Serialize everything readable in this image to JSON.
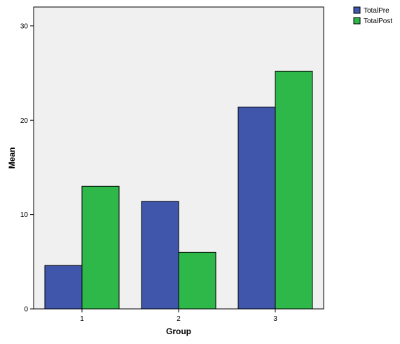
{
  "chart_data": {
    "type": "bar",
    "title": "",
    "xlabel": "Group",
    "ylabel": "Mean",
    "categories": [
      "1",
      "2",
      "3"
    ],
    "series": [
      {
        "name": "TotalPre",
        "values": [
          4.6,
          11.4,
          21.4
        ],
        "color": "#3f56ab"
      },
      {
        "name": "TotalPost",
        "values": [
          13.0,
          6.0,
          25.2
        ],
        "color": "#2fb84a"
      }
    ],
    "ylim": [
      0,
      32
    ],
    "yticks": [
      "0",
      "10",
      "20",
      "30"
    ],
    "grid": false,
    "legend_position": "top-right",
    "plot_background": "#f0f0f0"
  }
}
